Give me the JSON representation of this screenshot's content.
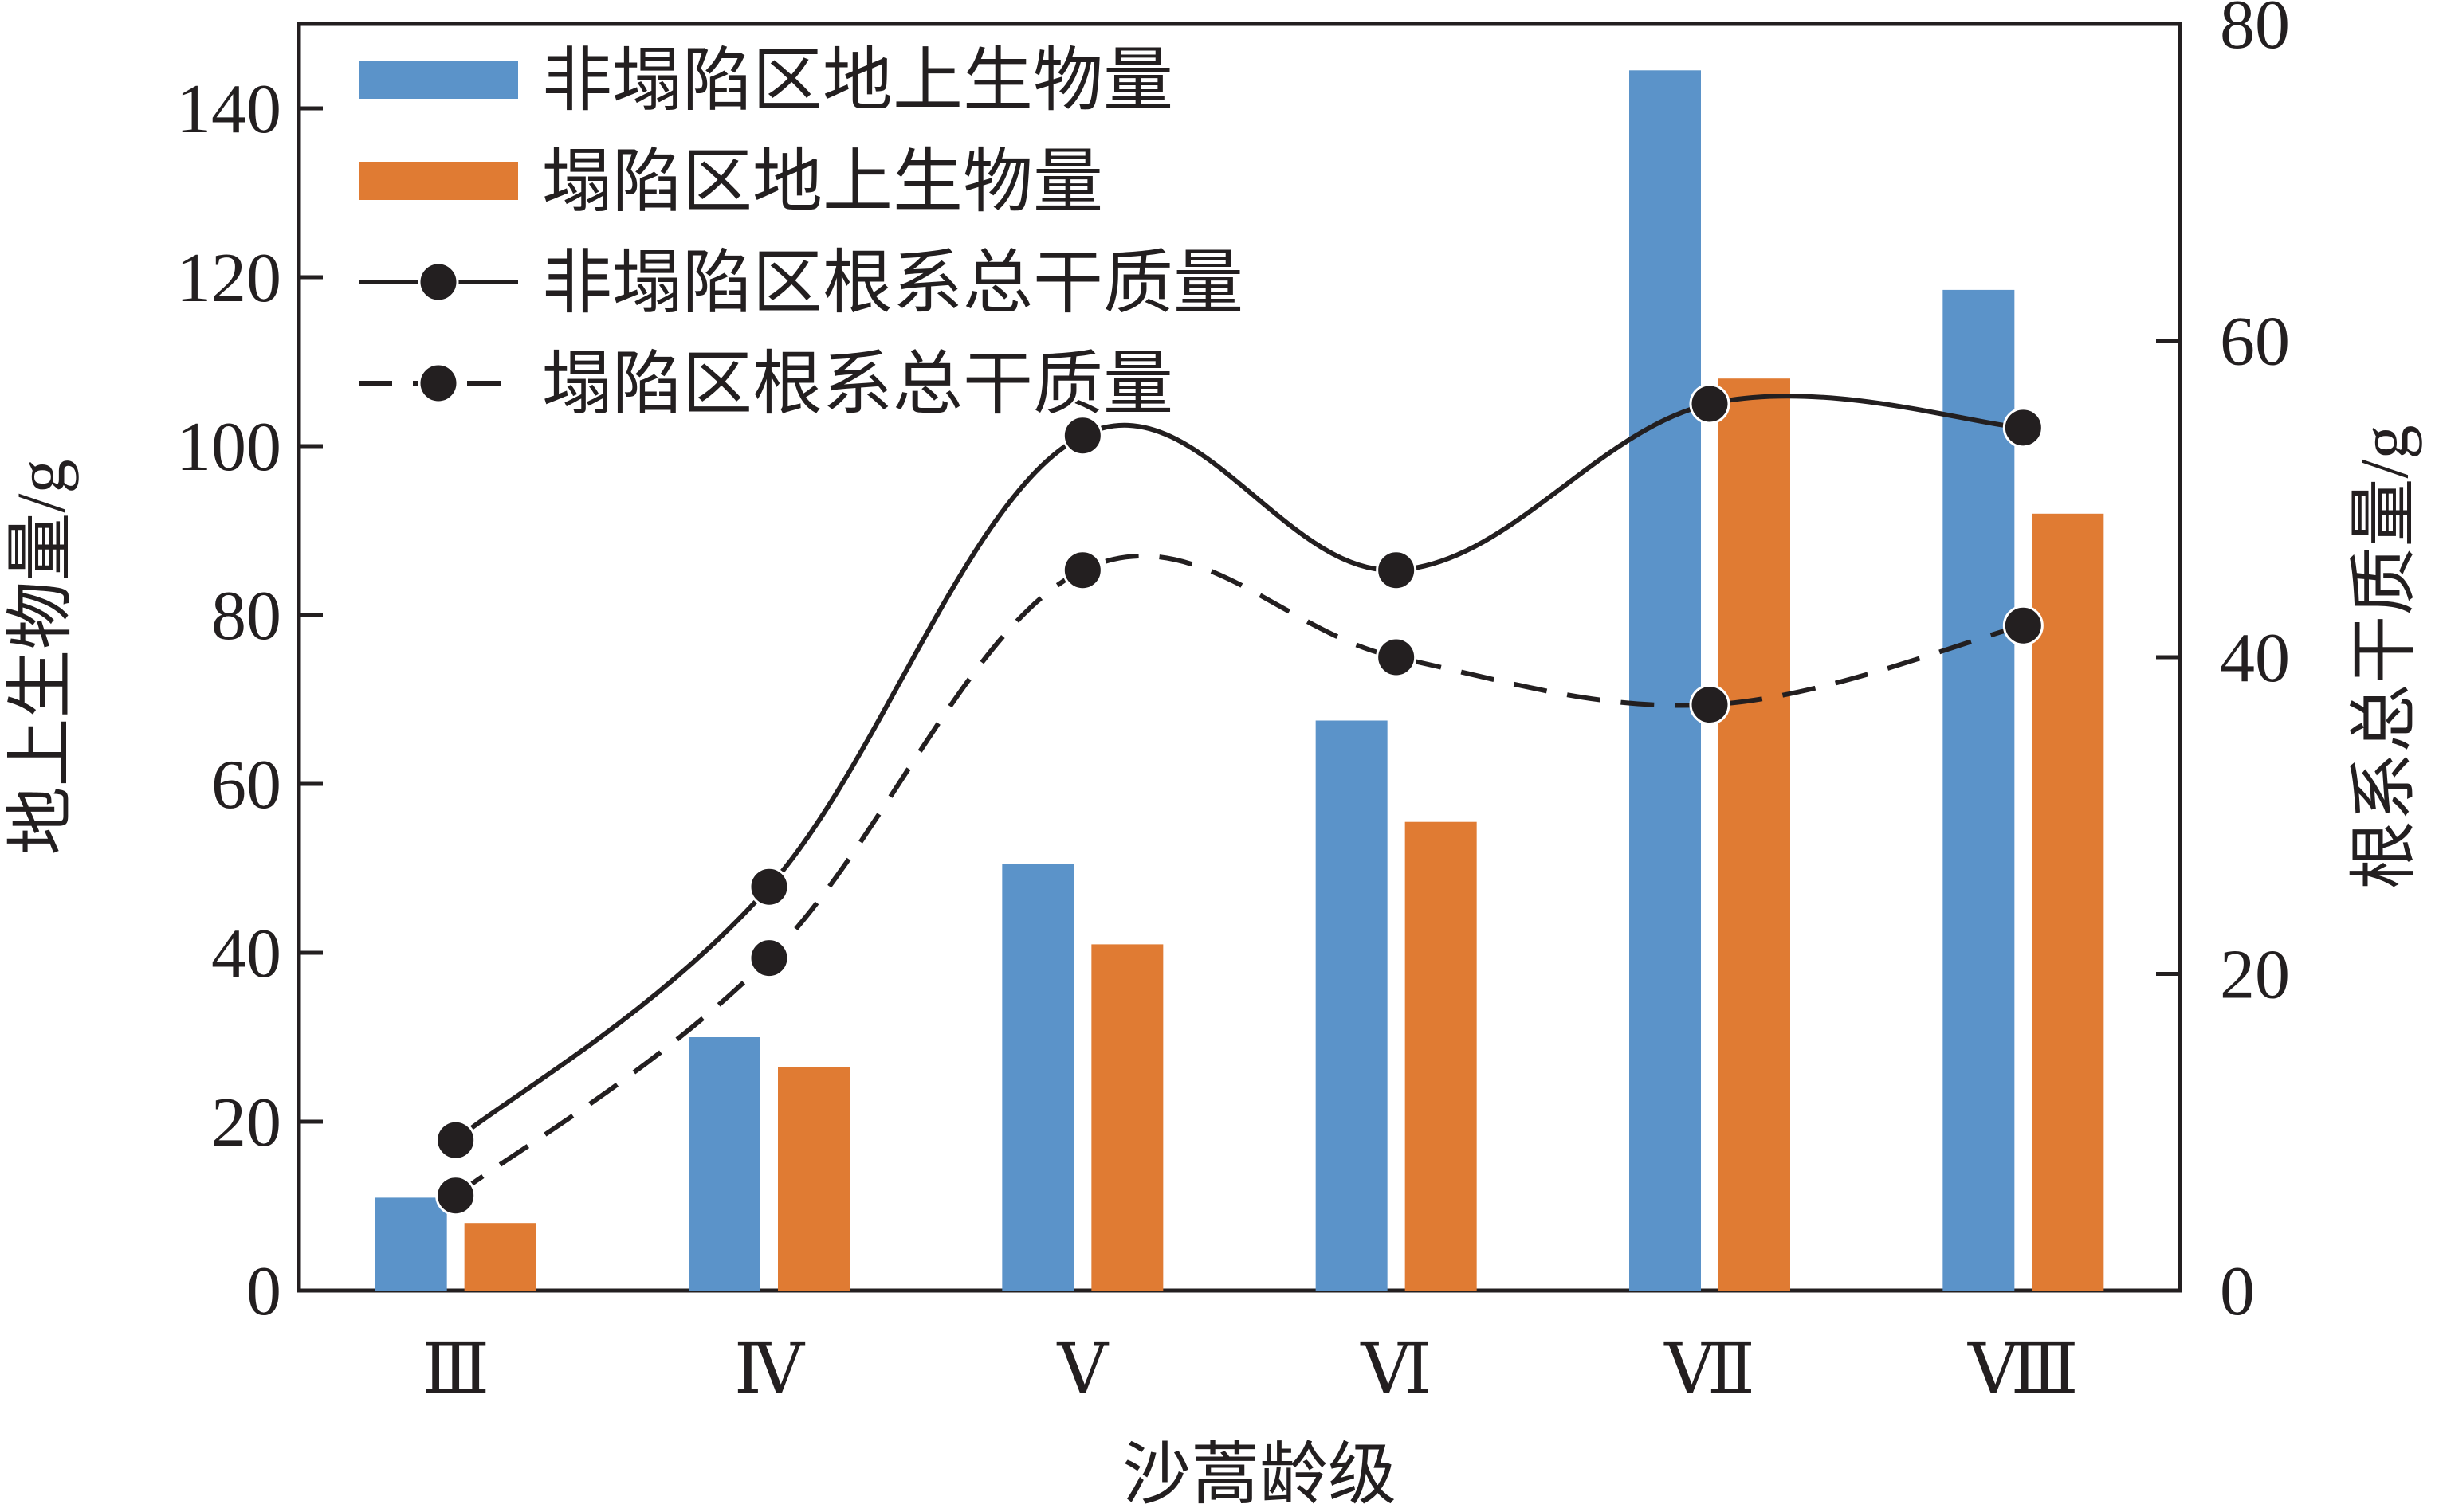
{
  "chart_data": {
    "type": "bar",
    "xlabel": "沙蒿龄级",
    "ylabel_left": "地上生物量/g",
    "ylabel_right": "根系总干质量/g",
    "categories": [
      "Ⅲ",
      "Ⅳ",
      "Ⅴ",
      "Ⅵ",
      "Ⅶ",
      "Ⅷ"
    ],
    "ylim_left": [
      0,
      150
    ],
    "ylim_right": [
      0,
      80
    ],
    "yticks_left": [
      0,
      20,
      40,
      60,
      80,
      100,
      120,
      140
    ],
    "yticks_right": [
      0,
      20,
      40,
      60,
      80
    ],
    "bar_series": [
      {
        "name": "非塌陷区地上生物量",
        "color": "#5b93c9",
        "values": [
          11,
          30,
          50.5,
          67.5,
          144.5,
          118.5
        ]
      },
      {
        "name": "塌陷区地上生物量",
        "color": "#e07b33",
        "values": [
          8,
          26.5,
          41,
          55.5,
          108,
          92
        ]
      }
    ],
    "line_series": [
      {
        "name": "非塌陷区根系总干质量",
        "style": "solid",
        "color": "#231f20",
        "values": [
          9.5,
          25.5,
          54,
          45.5,
          56,
          54.5
        ]
      },
      {
        "name": "塌陷区根系总干质量",
        "style": "dashed",
        "color": "#231f20",
        "values": [
          6,
          21,
          45.5,
          40,
          37,
          42
        ]
      }
    ],
    "legend_position": "top-left",
    "grid": false
  }
}
